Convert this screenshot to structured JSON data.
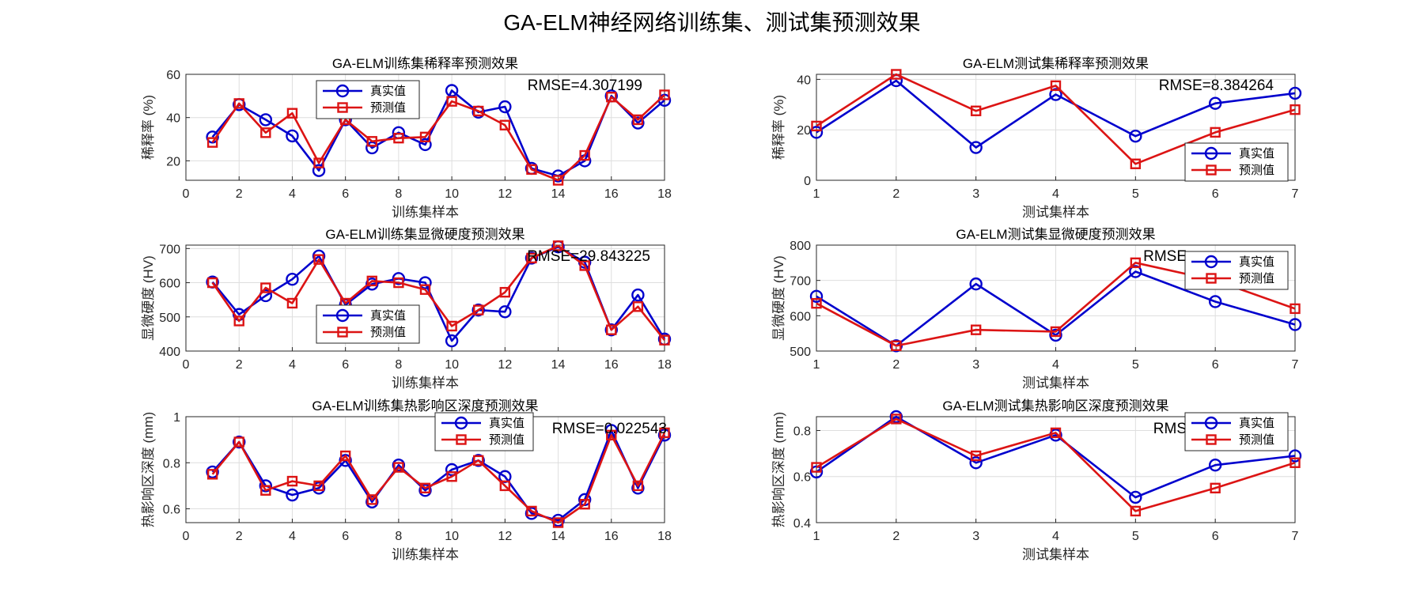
{
  "figure_title": "GA-ELM神经网络训练集、测试集预测效果",
  "colors": {
    "true": "#0000cd",
    "pred": "#dc1414",
    "grid": "#dedede",
    "axis": "#262626"
  },
  "chart_data": [
    {
      "type": "line",
      "title": "GA-ELM训练集稀释率预测效果",
      "xlabel": "训练集样本",
      "ylabel": "稀释率 (%)",
      "annotation": "RMSE=4.307199",
      "xlim": [
        0,
        18
      ],
      "ylim": [
        11,
        60
      ],
      "xticks": [
        0,
        2,
        4,
        6,
        8,
        10,
        12,
        14,
        16,
        18
      ],
      "yticks": [
        20,
        40,
        60
      ],
      "legend_position": "upper-center",
      "x": [
        1,
        2,
        3,
        4,
        5,
        6,
        7,
        8,
        9,
        10,
        11,
        12,
        13,
        14,
        15,
        16,
        17,
        18
      ],
      "series": [
        {
          "name": "真实值",
          "marker": "circle",
          "values": [
            31,
            46,
            39,
            31.5,
            15.5,
            39,
            26,
            33,
            27.5,
            52.5,
            42.5,
            45,
            16.5,
            13,
            20,
            50,
            37.5,
            48
          ]
        },
        {
          "name": "预测值",
          "marker": "square",
          "values": [
            28.5,
            46.5,
            33,
            42,
            19,
            39,
            29,
            30.5,
            31,
            47.5,
            43,
            36.5,
            16,
            11,
            22.5,
            49.5,
            39,
            50.5
          ]
        }
      ]
    },
    {
      "type": "line",
      "title": "GA-ELM测试集稀释率预测效果",
      "xlabel": "测试集样本",
      "ylabel": "稀释率 (%)",
      "annotation": "RMSE=8.384264",
      "xlim": [
        1,
        7
      ],
      "ylim": [
        0,
        42
      ],
      "xticks": [
        1,
        2,
        3,
        4,
        5,
        6,
        7
      ],
      "yticks": [
        0,
        20,
        40
      ],
      "legend_position": "lower-right",
      "x": [
        1,
        2,
        3,
        4,
        5,
        6,
        7
      ],
      "series": [
        {
          "name": "真实值",
          "marker": "circle",
          "values": [
            19,
            39.5,
            13,
            34,
            17.5,
            30.5,
            34.5
          ]
        },
        {
          "name": "预测值",
          "marker": "square",
          "values": [
            21.5,
            42,
            27.5,
            37.5,
            6.5,
            19,
            28
          ]
        }
      ]
    },
    {
      "type": "line",
      "title": "GA-ELM训练集显微硬度预测效果",
      "xlabel": "训练集样本",
      "ylabel": "显微硬度 (HV)",
      "annotation": "RMSE=29.843225",
      "xlim": [
        0,
        18
      ],
      "ylim": [
        400,
        710
      ],
      "xticks": [
        0,
        2,
        4,
        6,
        8,
        10,
        12,
        14,
        16,
        18
      ],
      "yticks": [
        400,
        500,
        600,
        700
      ],
      "legend_position": "lower-center",
      "x": [
        1,
        2,
        3,
        4,
        5,
        6,
        7,
        8,
        9,
        10,
        11,
        12,
        13,
        14,
        15,
        16,
        17,
        18
      ],
      "series": [
        {
          "name": "真实值",
          "marker": "circle",
          "values": [
            602,
            507,
            562,
            610,
            678,
            535,
            596,
            612,
            600,
            430,
            520,
            515,
            672,
            705,
            660,
            462,
            564,
            435
          ]
        },
        {
          "name": "预测值",
          "marker": "square",
          "values": [
            600,
            488,
            585,
            540,
            668,
            540,
            605,
            600,
            580,
            473,
            520,
            572,
            672,
            708,
            650,
            462,
            530,
            432
          ]
        }
      ]
    },
    {
      "type": "line",
      "title": "GA-ELM测试集显微硬度预测效果",
      "xlabel": "测试集样本",
      "ylabel": "显微硬度 (HV)",
      "annotation": "RMSE",
      "xlim": [
        1,
        7
      ],
      "ylim": [
        500,
        800
      ],
      "xticks": [
        1,
        2,
        3,
        4,
        5,
        6,
        7
      ],
      "yticks": [
        500,
        600,
        700,
        800
      ],
      "legend_position": "top-right",
      "x": [
        1,
        2,
        3,
        4,
        5,
        6,
        7
      ],
      "series": [
        {
          "name": "真实值",
          "marker": "circle",
          "values": [
            655,
            515,
            690,
            545,
            725,
            640,
            575
          ]
        },
        {
          "name": "预测值",
          "marker": "square",
          "values": [
            635,
            515,
            560,
            555,
            750,
            700,
            620
          ]
        }
      ]
    },
    {
      "type": "line",
      "title": "GA-ELM训练集热影响区深度预测效果",
      "xlabel": "训练集样本",
      "ylabel": "热影响区深度 (mm)",
      "annotation": "RMSE=0.022543",
      "xlim": [
        0,
        18
      ],
      "ylim": [
        0.54,
        1.0
      ],
      "xticks": [
        0,
        2,
        4,
        6,
        8,
        10,
        12,
        14,
        16,
        18
      ],
      "yticks": [
        0.6,
        0.8,
        1
      ],
      "legend_position": "upper-center",
      "x": [
        1,
        2,
        3,
        4,
        5,
        6,
        7,
        8,
        9,
        10,
        11,
        12,
        13,
        14,
        15,
        16,
        17,
        18
      ],
      "series": [
        {
          "name": "真实值",
          "marker": "circle",
          "values": [
            0.76,
            0.89,
            0.7,
            0.66,
            0.69,
            0.81,
            0.63,
            0.79,
            0.68,
            0.77,
            0.81,
            0.74,
            0.58,
            0.55,
            0.64,
            0.94,
            0.69,
            0.92
          ]
        },
        {
          "name": "预测值",
          "marker": "square",
          "values": [
            0.75,
            0.89,
            0.68,
            0.72,
            0.7,
            0.83,
            0.64,
            0.78,
            0.69,
            0.74,
            0.81,
            0.7,
            0.59,
            0.54,
            0.62,
            0.92,
            0.7,
            0.93
          ]
        }
      ]
    },
    {
      "type": "line",
      "title": "GA-ELM测试集热影响区深度预测效果",
      "xlabel": "测试集样本",
      "ylabel": "热影响区深度 (mm)",
      "annotation": "RMS",
      "xlim": [
        1,
        7
      ],
      "ylim": [
        0.4,
        0.86
      ],
      "xticks": [
        1,
        2,
        3,
        4,
        5,
        6,
        7
      ],
      "yticks": [
        0.4,
        0.6,
        0.8
      ],
      "yticklabels": [
        "0.4",
        "0.6",
        "0.8"
      ],
      "legend_position": "top-right",
      "x": [
        1,
        2,
        3,
        4,
        5,
        6,
        7
      ],
      "series": [
        {
          "name": "真实值",
          "marker": "circle",
          "values": [
            0.62,
            0.86,
            0.66,
            0.78,
            0.51,
            0.65,
            0.69
          ]
        },
        {
          "name": "预测值",
          "marker": "square",
          "values": [
            0.64,
            0.85,
            0.69,
            0.79,
            0.45,
            0.55,
            0.66
          ]
        }
      ]
    }
  ]
}
